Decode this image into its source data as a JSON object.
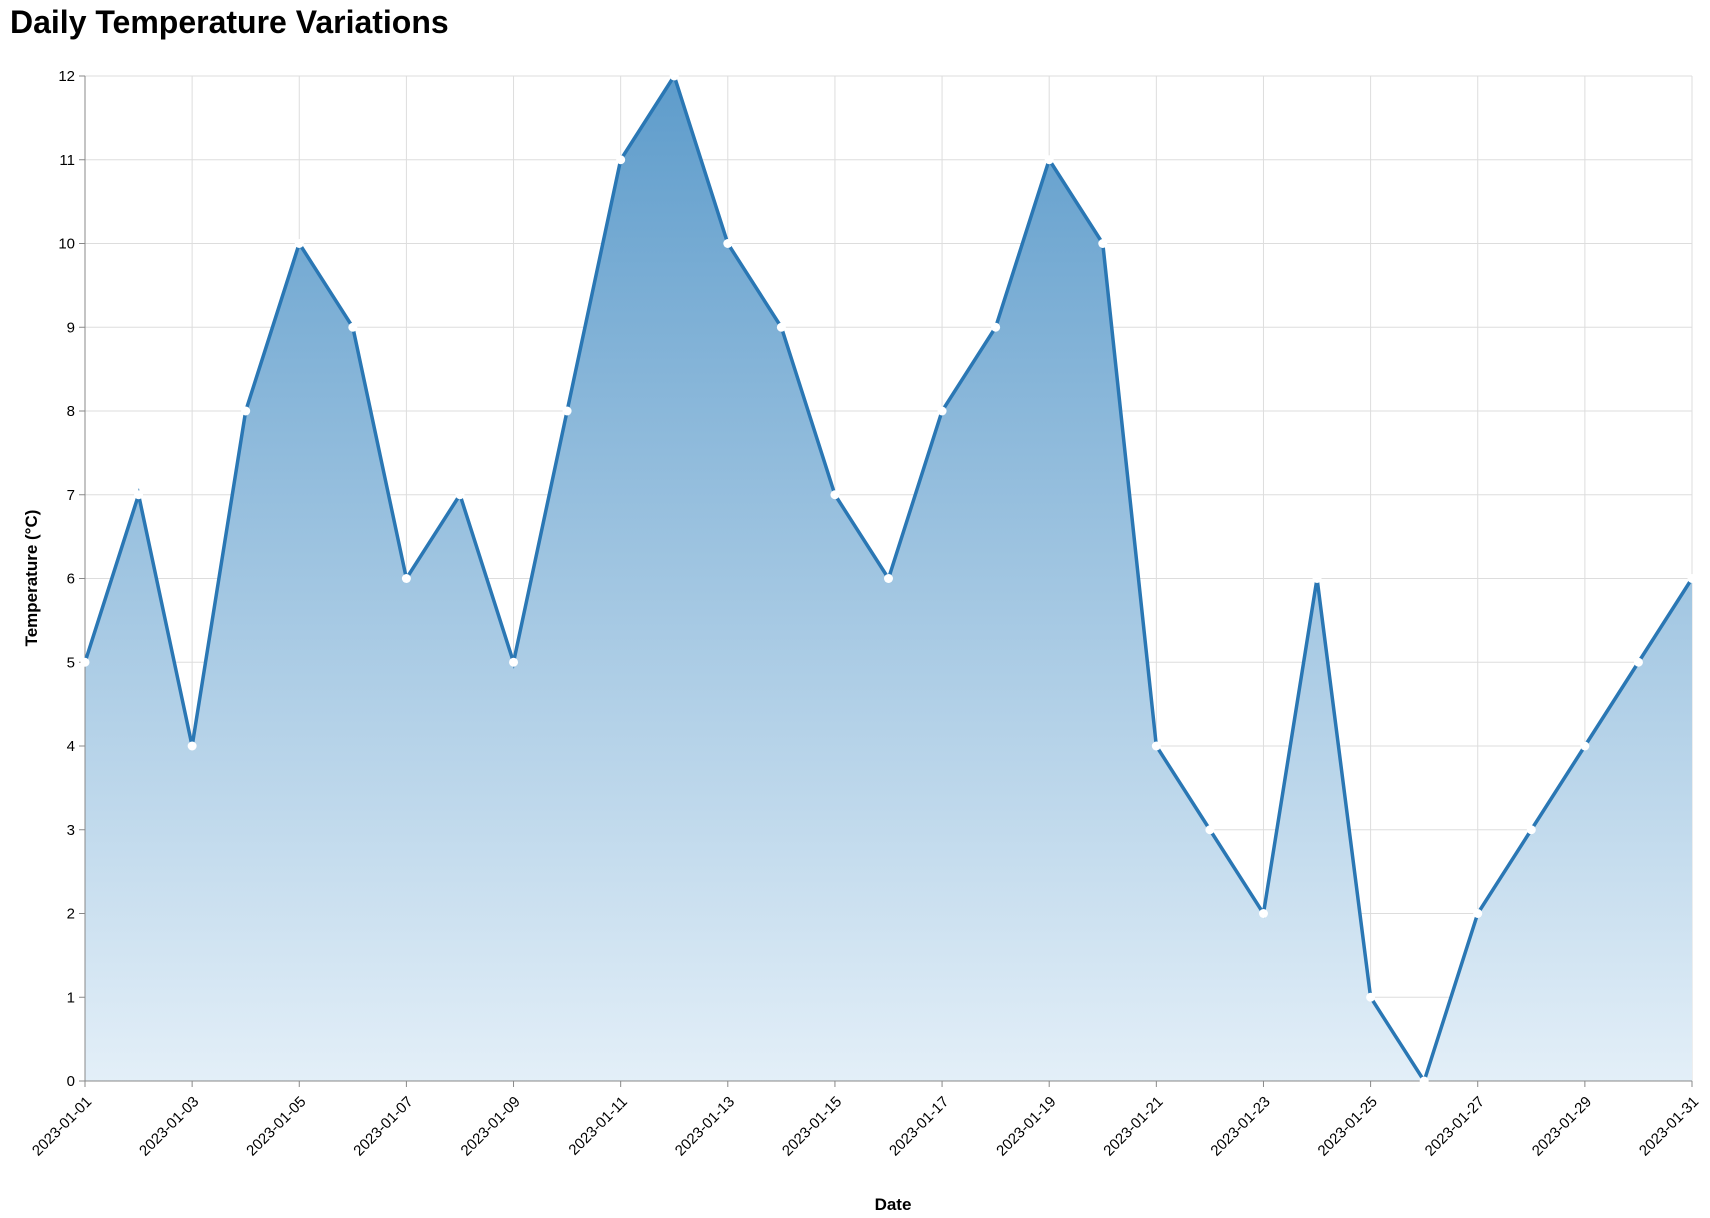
{
  "chart_data": {
    "type": "area",
    "title": "Daily Temperature Variations",
    "xlabel": "Date",
    "ylabel": "Temperature (°C)",
    "ylim": [
      0,
      12
    ],
    "y_ticks": [
      0,
      1,
      2,
      3,
      4,
      5,
      6,
      7,
      8,
      9,
      10,
      11,
      12
    ],
    "x_tick_labels": [
      "2023-01-01",
      "2023-01-03",
      "2023-01-05",
      "2023-01-07",
      "2023-01-09",
      "2023-01-11",
      "2023-01-13",
      "2023-01-15",
      "2023-01-17",
      "2023-01-19",
      "2023-01-21",
      "2023-01-23",
      "2023-01-25",
      "2023-01-27",
      "2023-01-29",
      "2023-01-31"
    ],
    "x": [
      "2023-01-01",
      "2023-01-02",
      "2023-01-03",
      "2023-01-04",
      "2023-01-05",
      "2023-01-06",
      "2023-01-07",
      "2023-01-08",
      "2023-01-09",
      "2023-01-10",
      "2023-01-11",
      "2023-01-12",
      "2023-01-13",
      "2023-01-14",
      "2023-01-15",
      "2023-01-16",
      "2023-01-17",
      "2023-01-18",
      "2023-01-19",
      "2023-01-20",
      "2023-01-21",
      "2023-01-22",
      "2023-01-23",
      "2023-01-24",
      "2023-01-25",
      "2023-01-26",
      "2023-01-27",
      "2023-01-28",
      "2023-01-29",
      "2023-01-30",
      "2023-01-31"
    ],
    "values": [
      5,
      7,
      4,
      8,
      10,
      9,
      6,
      7,
      5,
      8,
      11,
      12,
      10,
      9,
      7,
      6,
      8,
      9,
      11,
      10,
      4,
      3,
      2,
      6,
      1,
      0,
      2,
      3,
      4,
      5,
      6
    ],
    "grid": true,
    "colors": {
      "line": "#2a77b4",
      "fill_top": "#5e9ccb",
      "fill_bottom": "#e3eff8",
      "grid": "#dddddd",
      "point": "#ffffff"
    }
  }
}
